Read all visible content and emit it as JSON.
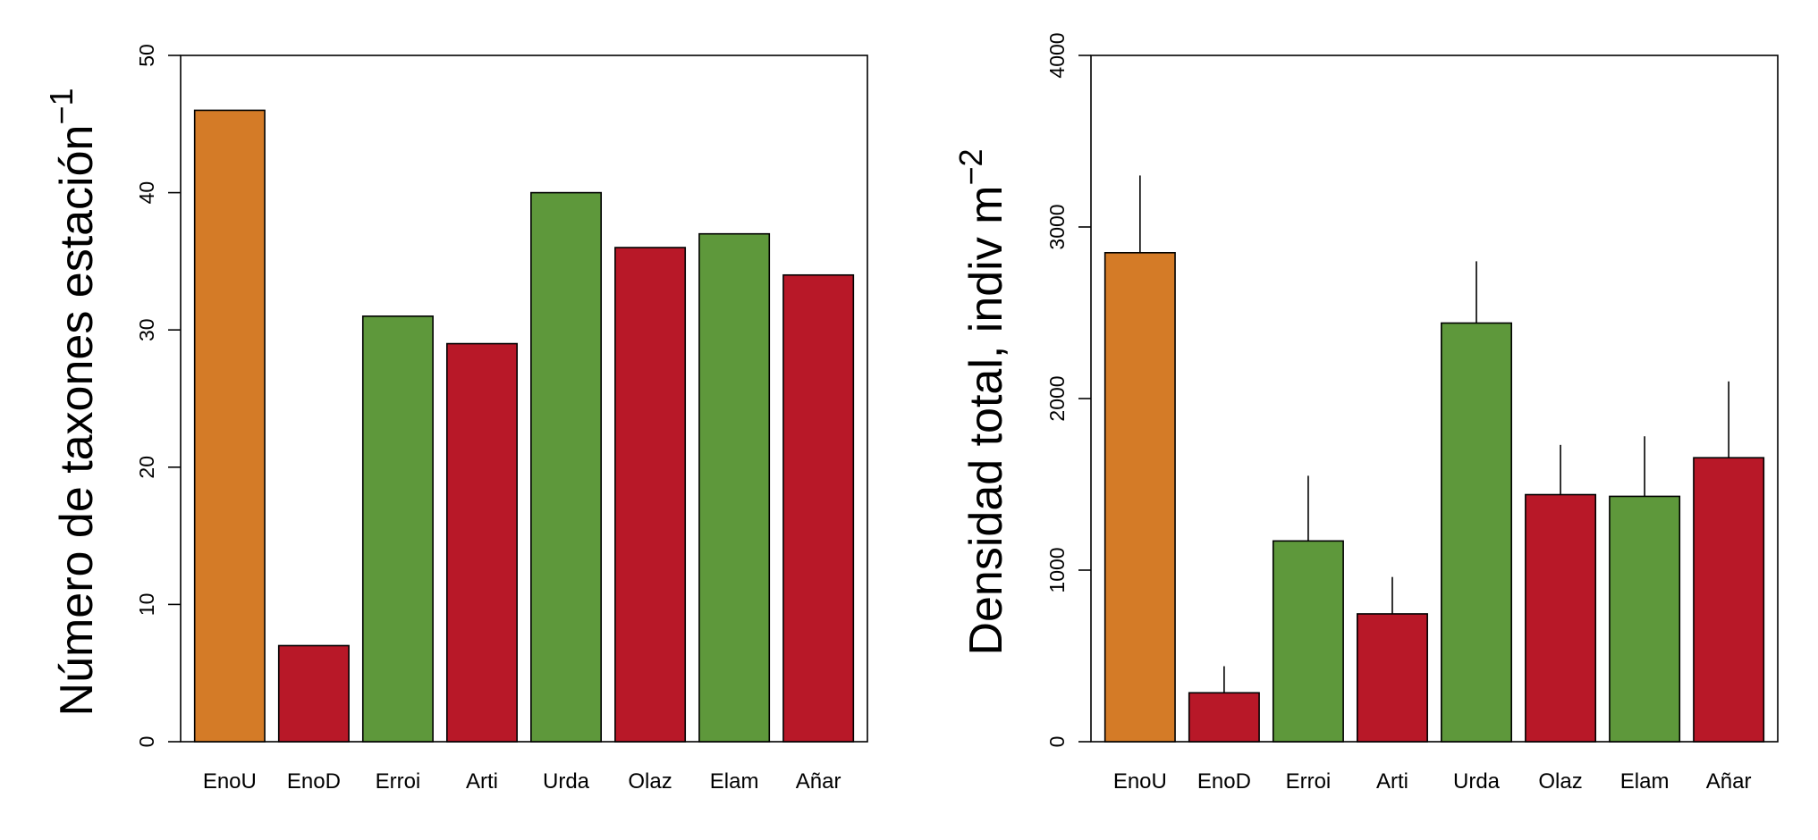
{
  "chart_data": [
    {
      "type": "bar",
      "categories": [
        "EnoU",
        "EnoD",
        "Erroi",
        "Arti",
        "Urda",
        "Olaz",
        "Elam",
        "Añar"
      ],
      "values": [
        46,
        7,
        31,
        29,
        40,
        36,
        37,
        34
      ],
      "bar_colors": [
        "#D47B27",
        "#B81828",
        "#5E983B",
        "#B81828",
        "#5E983B",
        "#B81828",
        "#5E983B",
        "#B81828"
      ],
      "ylabel_main": "Número de taxones estación",
      "ylabel_sup": "−1",
      "ylim": [
        0,
        50
      ],
      "yticks": [
        0,
        10,
        20,
        30,
        40,
        50
      ],
      "grid": false,
      "legend": "none"
    },
    {
      "type": "bar",
      "categories": [
        "EnoU",
        "EnoD",
        "Erroi",
        "Arti",
        "Urda",
        "Olaz",
        "Elam",
        "Añar"
      ],
      "values": [
        2850,
        285,
        1170,
        745,
        2440,
        1440,
        1430,
        1655
      ],
      "error_upper": [
        3300,
        440,
        1550,
        960,
        2800,
        1730,
        1780,
        2100
      ],
      "bar_colors": [
        "#D47B27",
        "#B81828",
        "#5E983B",
        "#B81828",
        "#5E983B",
        "#B81828",
        "#5E983B",
        "#B81828"
      ],
      "ylabel_main": "Densidad total, indiv m",
      "ylabel_sup": "−2",
      "ylim": [
        0,
        4000
      ],
      "yticks": [
        0,
        1000,
        2000,
        3000,
        4000
      ],
      "grid": false,
      "legend": "none"
    }
  ]
}
